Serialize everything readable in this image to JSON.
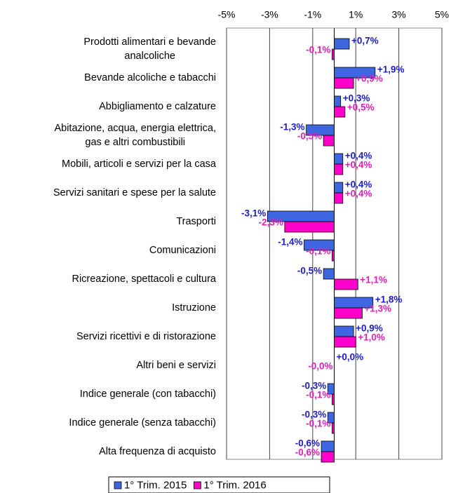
{
  "chart_data": {
    "type": "bar",
    "orientation": "horizontal",
    "categories": [
      "Prodotti alimentari e bevande\nanalcoliche",
      "Bevande alcoliche e tabacchi",
      "Abbigliamento e calzature",
      "Abitazione, acqua, energia elettrica,\ngas e altri combustibili",
      "Mobili, articoli e servizi per la casa",
      "Servizi sanitari e spese per la salute",
      "Trasporti",
      "Comunicazioni",
      "Ricreazione, spettacoli e cultura",
      "Istruzione",
      "Servizi ricettivi e di ristorazione",
      "Altri beni e servizi",
      "Indice generale (con tabacchi)",
      "Indice generale (senza tabacchi)",
      "Alta frequenza di acquisto"
    ],
    "series": [
      {
        "name": "1° Trim. 2015",
        "color": "#3d66e0",
        "label_color": "#1c1ccc",
        "values": [
          0.7,
          1.9,
          0.3,
          -1.3,
          0.4,
          0.4,
          -3.1,
          -1.4,
          -0.5,
          1.8,
          0.9,
          0.0,
          -0.3,
          -0.3,
          -0.6
        ],
        "value_labels": [
          "+0,7%",
          "+1,9%",
          "+0,3%",
          "-1,3%",
          "+0,4%",
          "+0,4%",
          "-3,1%",
          "-1,4%",
          "-0,5%",
          "+1,8%",
          "+0,9%",
          "+0,0%",
          "-0,3%",
          "-0,3%",
          "-0,6%"
        ]
      },
      {
        "name": "1° Trim. 2016",
        "color": "#ff00cc",
        "label_color": "#e020b8",
        "values": [
          -0.1,
          0.9,
          0.5,
          -0.5,
          0.4,
          0.4,
          -2.3,
          -0.1,
          1.1,
          1.3,
          1.0,
          0.0,
          -0.1,
          -0.1,
          -0.6
        ],
        "value_labels": [
          "-0,1%",
          "+0,9%",
          "+0,5%",
          "-0,5%",
          "+0,4%",
          "+0,4%",
          "-2,3%",
          "-0,1%",
          "+1,1%",
          "+1,3%",
          "+1,0%",
          "-0,0%",
          "-0,1%",
          "-0,1%",
          "-0,6%"
        ]
      }
    ],
    "xlim": [
      -5,
      5
    ],
    "xticks": [
      {
        "value": -5,
        "label": "-5%"
      },
      {
        "value": -3,
        "label": "-3%"
      },
      {
        "value": -1,
        "label": "-1%"
      },
      {
        "value": 1,
        "label": "1%"
      },
      {
        "value": 3,
        "label": "3%"
      },
      {
        "value": 5,
        "label": "5%"
      }
    ],
    "grid": true,
    "legend": "bottom"
  }
}
